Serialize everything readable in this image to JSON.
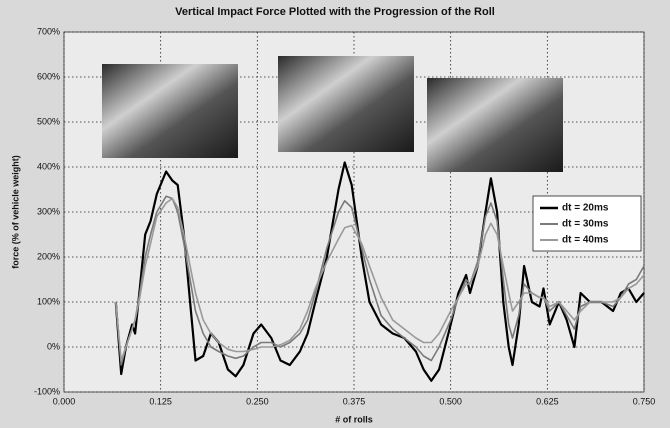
{
  "chart_data": {
    "type": "line",
    "title": "Vertical Impact Force Plotted with the Progression of the Roll",
    "x_label": "# of rolls",
    "y_label": "force (% of vehicle weight)",
    "x": [
      0.067,
      0.074,
      0.08,
      0.088,
      0.092,
      0.098,
      0.105,
      0.112,
      0.12,
      0.132,
      0.14,
      0.147,
      0.155,
      0.163,
      0.17,
      0.18,
      0.19,
      0.2,
      0.212,
      0.222,
      0.232,
      0.245,
      0.255,
      0.268,
      0.28,
      0.292,
      0.305,
      0.315,
      0.325,
      0.34,
      0.355,
      0.363,
      0.372,
      0.385,
      0.395,
      0.41,
      0.425,
      0.44,
      0.455,
      0.465,
      0.475,
      0.485,
      0.5,
      0.51,
      0.52,
      0.525,
      0.535,
      0.545,
      0.552,
      0.56,
      0.568,
      0.575,
      0.58,
      0.588,
      0.595,
      0.605,
      0.615,
      0.62,
      0.628,
      0.64,
      0.65,
      0.66,
      0.668,
      0.68,
      0.695,
      0.71,
      0.72,
      0.73,
      0.74,
      0.75
    ],
    "series": [
      {
        "name": "dt = 20ms",
        "color": "#000000",
        "width": 2.2,
        "values": [
          100,
          -60,
          0,
          50,
          30,
          130,
          250,
          280,
          340,
          390,
          370,
          360,
          250,
          100,
          -30,
          -20,
          30,
          10,
          -50,
          -65,
          -40,
          30,
          50,
          20,
          -30,
          -40,
          -10,
          30,
          100,
          200,
          350,
          410,
          360,
          200,
          100,
          50,
          30,
          20,
          -10,
          -50,
          -75,
          -50,
          50,
          120,
          160,
          120,
          180,
          300,
          375,
          300,
          100,
          0,
          -40,
          50,
          180,
          100,
          90,
          130,
          50,
          100,
          60,
          0,
          120,
          100,
          100,
          80,
          120,
          130,
          100,
          120
        ]
      },
      {
        "name": "dt = 30ms",
        "color": "#7a7a7a",
        "width": 1.6,
        "values": [
          100,
          -40,
          0,
          40,
          60,
          120,
          200,
          250,
          300,
          335,
          330,
          300,
          230,
          150,
          80,
          30,
          0,
          -10,
          -20,
          -25,
          -20,
          0,
          10,
          10,
          0,
          10,
          30,
          60,
          120,
          220,
          300,
          325,
          310,
          220,
          150,
          70,
          40,
          20,
          0,
          -20,
          -30,
          0,
          60,
          110,
          150,
          140,
          190,
          290,
          320,
          280,
          150,
          50,
          20,
          70,
          140,
          120,
          110,
          110,
          80,
          100,
          70,
          40,
          90,
          100,
          100,
          90,
          110,
          140,
          150,
          180
        ]
      },
      {
        "name": "dt = 40ms",
        "color": "#9a9a9a",
        "width": 1.6,
        "values": [
          100,
          -30,
          0,
          40,
          60,
          110,
          180,
          230,
          290,
          320,
          330,
          310,
          250,
          180,
          120,
          60,
          30,
          10,
          -5,
          -10,
          -10,
          -5,
          0,
          0,
          5,
          15,
          40,
          80,
          130,
          190,
          240,
          265,
          270,
          230,
          180,
          110,
          60,
          40,
          20,
          10,
          10,
          30,
          80,
          110,
          140,
          140,
          180,
          250,
          275,
          250,
          180,
          120,
          80,
          100,
          120,
          120,
          110,
          110,
          90,
          100,
          80,
          60,
          80,
          100,
          100,
          100,
          110,
          130,
          140,
          160
        ]
      }
    ],
    "xlim": [
      0,
      0.75
    ],
    "xticks": [
      {
        "value": 0,
        "label": "0.000"
      },
      0.125,
      {
        "value": 0.25,
        "label": "0.250"
      },
      0.375,
      {
        "value": 0.5,
        "label": "0.500"
      },
      0.625,
      {
        "value": 0.75,
        "label": "0.750"
      }
    ],
    "ylim": [
      -100,
      700
    ],
    "yticks": [
      {
        "value": -100,
        "label": "-100%"
      },
      {
        "value": 0,
        "label": "0%"
      },
      {
        "value": 100,
        "label": "100%"
      },
      {
        "value": 200,
        "label": "200%"
      },
      {
        "value": 300,
        "label": "300%"
      },
      {
        "value": 400,
        "label": "400%"
      },
      {
        "value": 500,
        "label": "500%"
      },
      {
        "value": 600,
        "label": "600%"
      },
      {
        "value": 700,
        "label": "700%"
      }
    ],
    "grid": true,
    "legend": "right"
  }
}
